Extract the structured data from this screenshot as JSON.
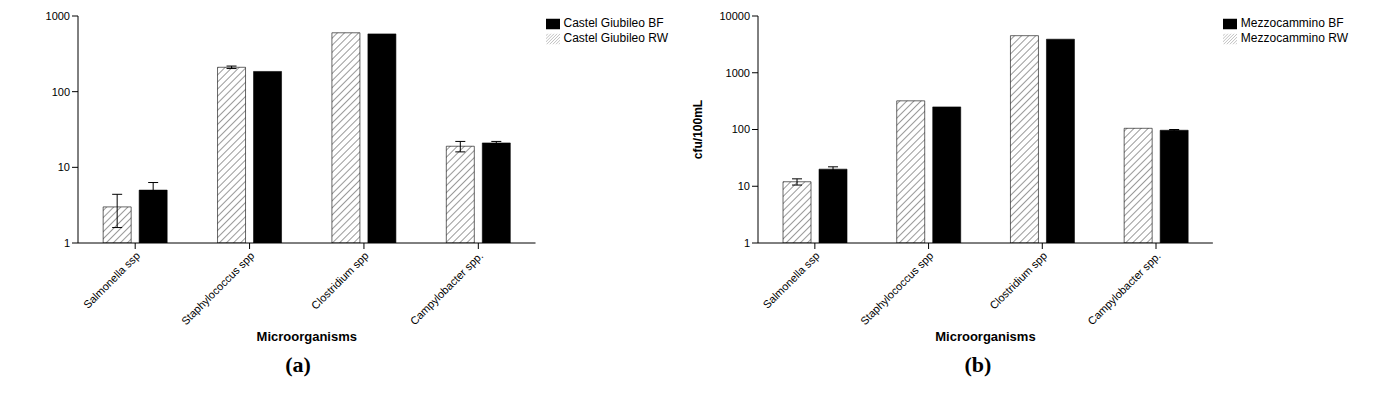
{
  "chart_data": [
    {
      "type": "bar",
      "title": "(a)",
      "x_label": "Microorganisms",
      "categories": [
        "Salmonella ssp",
        "Staphylococcus spp",
        "Clostridium spp",
        "Campylobacter spp."
      ],
      "series": [
        {
          "name": "Castel Giubileo RW",
          "color": "#555555",
          "marker": "hatch",
          "values": [
            3,
            210,
            600,
            19
          ],
          "errors": [
            1.4,
            8,
            0,
            3
          ]
        },
        {
          "name": "Castel Giubileo BF",
          "color": "#000000",
          "marker": "solid",
          "values": [
            5,
            185,
            580,
            21
          ],
          "errors": [
            1.3,
            0,
            0,
            1
          ]
        }
      ],
      "log": "y",
      "ylim": [
        1,
        1000
      ],
      "yticks": [
        1,
        10,
        100,
        1000
      ],
      "legend": "upper right"
    },
    {
      "type": "bar",
      "title": "(b)",
      "x_label": "Microorganisms",
      "y_label": "cfu/100mL",
      "categories": [
        "Salmonella ssp",
        "Staphylococcus spp",
        "Clostridium spp",
        "Campylobacter spp."
      ],
      "series": [
        {
          "name": "Mezzocammino  RW",
          "color": "#555555",
          "marker": "hatch",
          "values": [
            12,
            320,
            4500,
            105
          ],
          "errors": [
            1.5,
            0,
            0,
            0
          ]
        },
        {
          "name": "Mezzocammino  BF",
          "color": "#000000",
          "marker": "solid",
          "values": [
            20,
            250,
            3900,
            97
          ],
          "errors": [
            2,
            0,
            0,
            3
          ]
        }
      ],
      "log": "y",
      "ylim": [
        1,
        10000
      ],
      "yticks": [
        1,
        10,
        100,
        1000,
        10000
      ],
      "legend": "upper right"
    }
  ]
}
